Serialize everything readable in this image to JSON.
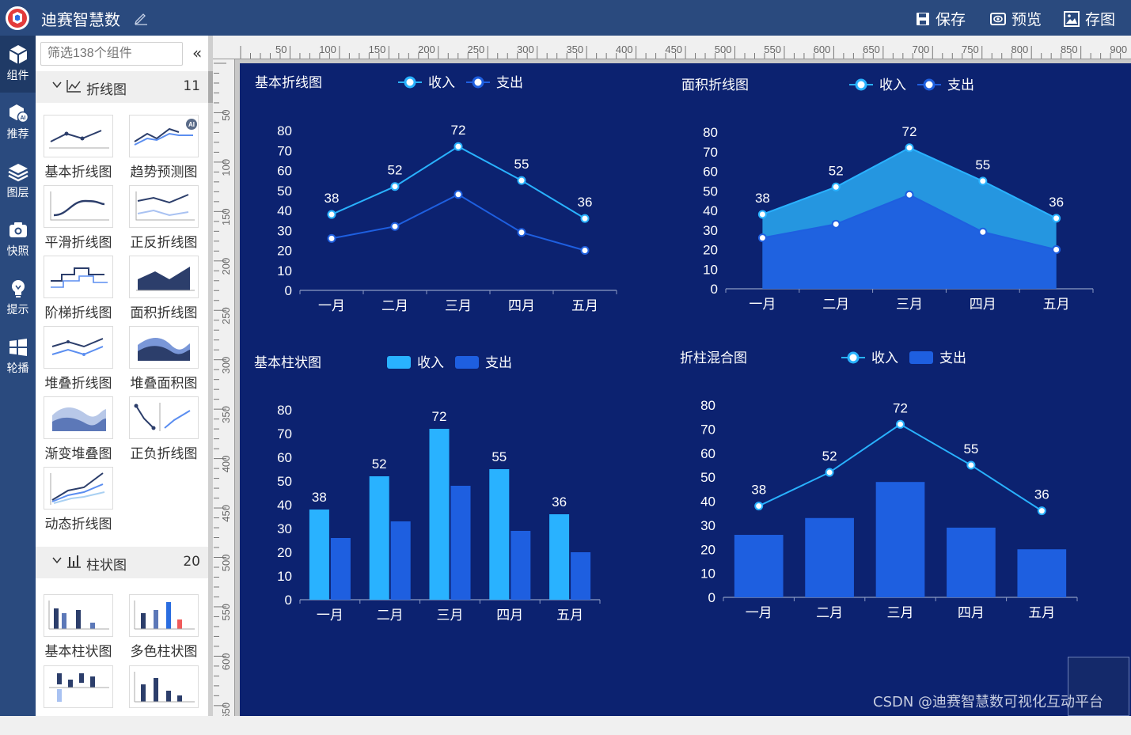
{
  "app": {
    "title": "迪赛智慧数"
  },
  "toolbar": {
    "save": "保存",
    "preview": "预览",
    "save_image": "存图"
  },
  "nav": [
    {
      "label": "组件",
      "icon": "cube-icon"
    },
    {
      "label": "推荐",
      "icon": "ai-recommend-icon"
    },
    {
      "label": "图层",
      "icon": "layers-icon"
    },
    {
      "label": "快照",
      "icon": "camera-icon"
    },
    {
      "label": "提示",
      "icon": "bulb-icon"
    },
    {
      "label": "轮播",
      "icon": "windows-grid-icon"
    }
  ],
  "panel": {
    "search_placeholder": "筛选138个组件",
    "collapse": "«",
    "categories": [
      {
        "name": "折线图",
        "count": "11"
      },
      {
        "name": "柱状图",
        "count": "20"
      }
    ],
    "line_tiles": [
      "基本折线图",
      "趋势预测图",
      "平滑折线图",
      "正反折线图",
      "阶梯折线图",
      "面积折线图",
      "堆叠折线图",
      "堆叠面积图",
      "渐变堆叠图",
      "正负折线图",
      "动态折线图"
    ],
    "bar_tiles": [
      "基本柱状图",
      "多色柱状图"
    ],
    "ai_badge": "AI"
  },
  "ruler": {
    "top": [
      "50",
      "100",
      "150",
      "200",
      "250",
      "300",
      "350",
      "400",
      "450",
      "500",
      "550",
      "600",
      "650",
      "700",
      "750",
      "800",
      "850",
      "900"
    ],
    "left": [
      "50",
      "100",
      "150",
      "200",
      "250",
      "300",
      "350",
      "400",
      "450",
      "500",
      "550",
      "600",
      "650"
    ]
  },
  "colors": {
    "income": "#29b2ff",
    "expense": "#1e5fe0",
    "canvas": "#0c2270"
  },
  "chart_data": [
    {
      "type": "line",
      "title": "基本折线图",
      "categories": [
        "一月",
        "二月",
        "三月",
        "四月",
        "五月"
      ],
      "ylim": [
        0,
        80
      ],
      "yticks": [
        "0",
        "10",
        "20",
        "30",
        "40",
        "50",
        "60",
        "70",
        "80"
      ],
      "series": [
        {
          "name": "收入",
          "values": [
            38,
            52,
            72,
            55,
            36
          ],
          "labels": [
            "38",
            "52",
            "72",
            "55",
            "36"
          ]
        },
        {
          "name": "支出",
          "values": [
            26,
            32,
            48,
            29,
            20
          ]
        }
      ]
    },
    {
      "type": "area",
      "title": "面积折线图",
      "categories": [
        "一月",
        "二月",
        "三月",
        "四月",
        "五月"
      ],
      "ylim": [
        0,
        80
      ],
      "yticks": [
        "0",
        "10",
        "20",
        "30",
        "40",
        "50",
        "60",
        "70",
        "80"
      ],
      "series": [
        {
          "name": "收入",
          "values": [
            38,
            52,
            72,
            55,
            36
          ],
          "labels": [
            "38",
            "52",
            "72",
            "55",
            "36"
          ]
        },
        {
          "name": "支出",
          "values": [
            26,
            33,
            48,
            29,
            20
          ]
        }
      ]
    },
    {
      "type": "bar",
      "title": "基本柱状图",
      "categories": [
        "一月",
        "二月",
        "三月",
        "四月",
        "五月"
      ],
      "ylim": [
        0,
        80
      ],
      "yticks": [
        "0",
        "10",
        "20",
        "30",
        "40",
        "50",
        "60",
        "70",
        "80"
      ],
      "series": [
        {
          "name": "收入",
          "values": [
            38,
            52,
            72,
            55,
            36
          ],
          "labels": [
            "38",
            "52",
            "72",
            "55",
            "36"
          ]
        },
        {
          "name": "支出",
          "values": [
            26,
            33,
            48,
            29,
            20
          ]
        }
      ]
    },
    {
      "type": "bar-line",
      "title": "折柱混合图",
      "categories": [
        "一月",
        "二月",
        "三月",
        "四月",
        "五月"
      ],
      "ylim": [
        0,
        80
      ],
      "yticks": [
        "0",
        "10",
        "20",
        "30",
        "40",
        "50",
        "60",
        "70",
        "80"
      ],
      "series": [
        {
          "name": "收入",
          "values": [
            38,
            52,
            72,
            55,
            36
          ],
          "labels": [
            "38",
            "52",
            "72",
            "55",
            "36"
          ]
        },
        {
          "name": "支出",
          "values": [
            26,
            33,
            48,
            29,
            20
          ]
        }
      ]
    }
  ],
  "watermark": "CSDN @迪赛智慧数可视化互动平台"
}
